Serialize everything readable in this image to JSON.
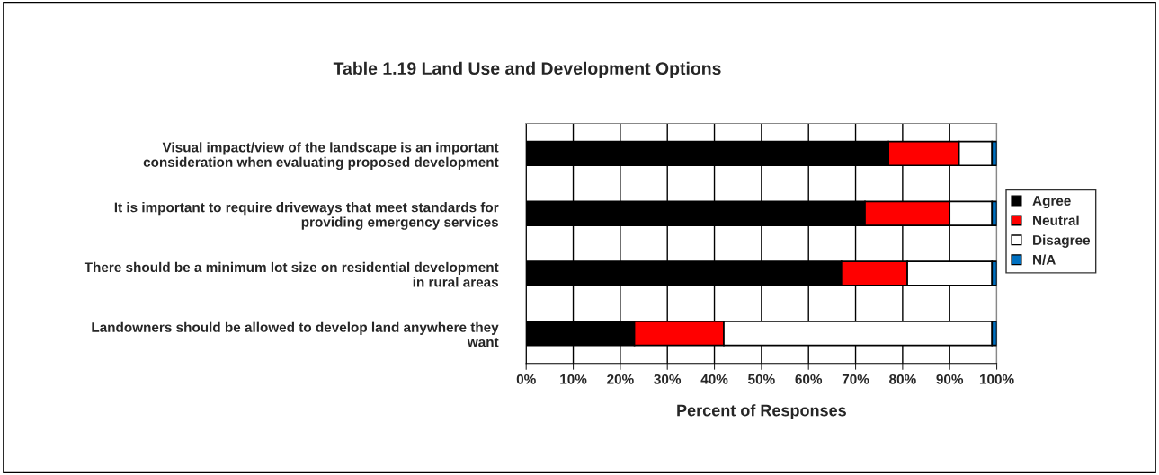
{
  "chart_data": {
    "type": "bar",
    "orientation": "horizontal",
    "stacked": true,
    "title": "Table 1.19 Land Use and Development Options",
    "xlabel": "Percent of Responses",
    "categories": [
      "Visual impact/view of the landscape is an important\nconsideration when evaluating proposed development",
      "It is important to require driveways that meet standards for\nproviding emergency services",
      "There should be a minimum lot size on residential development\nin rural areas",
      "Landowners should be allowed to develop land anywhere they\nwant"
    ],
    "series": [
      {
        "name": "Agree",
        "color": "#000000",
        "values": [
          77,
          72,
          67,
          23
        ]
      },
      {
        "name": "Neutral",
        "color": "#ff0000",
        "values": [
          15,
          18,
          14,
          19
        ]
      },
      {
        "name": "Disagree",
        "color": "#ffffff",
        "values": [
          7,
          9,
          18,
          57
        ]
      },
      {
        "name": "N/A",
        "color": "#0070c0",
        "values": [
          1,
          1,
          1,
          1
        ]
      }
    ],
    "xlim": [
      0,
      100
    ],
    "xticks": [
      {
        "value": 0,
        "label": "0%"
      },
      {
        "value": 10,
        "label": "10%"
      },
      {
        "value": 20,
        "label": "20%"
      },
      {
        "value": 30,
        "label": "30%"
      },
      {
        "value": 40,
        "label": "40%"
      },
      {
        "value": 50,
        "label": "50%"
      },
      {
        "value": 60,
        "label": "60%"
      },
      {
        "value": 70,
        "label": "70%"
      },
      {
        "value": 80,
        "label": "80%"
      },
      {
        "value": 90,
        "label": "90%"
      },
      {
        "value": 100,
        "label": "100%"
      }
    ],
    "grid": "x",
    "legend": "right"
  }
}
